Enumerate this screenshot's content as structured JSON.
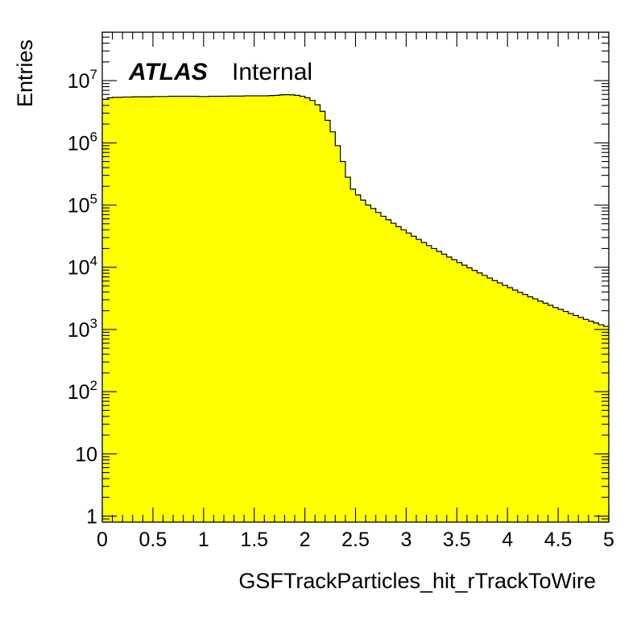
{
  "chart_data": {
    "type": "histogram",
    "title": "",
    "xlabel": "GSFTrackParticles_hit_rTrackToWire",
    "ylabel": "Entries",
    "xlim": [
      0,
      5
    ],
    "ylim": [
      0.8,
      60000000
    ],
    "yscale": "log",
    "fill_color": "#ffff00",
    "line_color": "#000000",
    "legend": "none",
    "grid": false,
    "x_tick_labels": [
      "0",
      "0.5",
      "1",
      "1.5",
      "2",
      "2.5",
      "3",
      "3.5",
      "4",
      "4.5",
      "5"
    ],
    "y_ticks": [
      {
        "value": 1,
        "base": "1",
        "exp": ""
      },
      {
        "value": 10,
        "base": "10",
        "exp": ""
      },
      {
        "value": 100,
        "base": "10",
        "exp": "2"
      },
      {
        "value": 1000,
        "base": "10",
        "exp": "3"
      },
      {
        "value": 10000,
        "base": "10",
        "exp": "4"
      },
      {
        "value": 100000,
        "base": "10",
        "exp": "5"
      },
      {
        "value": 1000000,
        "base": "10",
        "exp": "6"
      },
      {
        "value": 10000000,
        "base": "10",
        "exp": "7"
      }
    ],
    "bin_width": 0.05,
    "bin_low_edges": [
      0.0,
      0.05,
      0.1,
      0.15,
      0.2,
      0.25,
      0.3,
      0.35,
      0.4,
      0.45,
      0.5,
      0.55,
      0.6,
      0.65,
      0.7,
      0.75,
      0.8,
      0.85,
      0.9,
      0.95,
      1.0,
      1.05,
      1.1,
      1.15,
      1.2,
      1.25,
      1.3,
      1.35,
      1.4,
      1.45,
      1.5,
      1.55,
      1.6,
      1.65,
      1.7,
      1.75,
      1.8,
      1.85,
      1.9,
      1.95,
      2.0,
      2.05,
      2.1,
      2.15,
      2.2,
      2.25,
      2.3,
      2.35,
      2.4,
      2.45,
      2.5,
      2.55,
      2.6,
      2.65,
      2.7,
      2.75,
      2.8,
      2.85,
      2.9,
      2.95,
      3.0,
      3.05,
      3.1,
      3.15,
      3.2,
      3.25,
      3.3,
      3.35,
      3.4,
      3.45,
      3.5,
      3.55,
      3.6,
      3.65,
      3.7,
      3.75,
      3.8,
      3.85,
      3.9,
      3.95,
      4.0,
      4.05,
      4.1,
      4.15,
      4.2,
      4.25,
      4.3,
      4.35,
      4.4,
      4.45,
      4.5,
      4.55,
      4.6,
      4.65,
      4.7,
      4.75,
      4.8,
      4.85,
      4.9,
      4.95
    ],
    "values": [
      5000000,
      5300000,
      5400000,
      5400000,
      5450000,
      5450000,
      5500000,
      5500000,
      5500000,
      5500000,
      5550000,
      5550000,
      5550000,
      5600000,
      5600000,
      5600000,
      5600000,
      5600000,
      5600000,
      5550000,
      5550000,
      5600000,
      5600000,
      5600000,
      5600000,
      5650000,
      5650000,
      5650000,
      5700000,
      5700000,
      5700000,
      5700000,
      5700000,
      5750000,
      5800000,
      5900000,
      5950000,
      5900000,
      5800000,
      5600000,
      5300000,
      4800000,
      4100000,
      3200000,
      2300000,
      1500000,
      900000,
      500000,
      280000,
      180000,
      145000,
      120000,
      100000,
      88000,
      76000,
      66000,
      58000,
      51000,
      45000,
      40000,
      35500,
      31500,
      28000,
      25000,
      22300,
      20000,
      18000,
      16200,
      14600,
      13200,
      11900,
      10800,
      9800,
      8900,
      8100,
      7400,
      6700,
      6100,
      5600,
      5100,
      4700,
      4300,
      3950,
      3650,
      3350,
      3100,
      2850,
      2650,
      2450,
      2250,
      2100,
      1950,
      1800,
      1680,
      1560,
      1450,
      1360,
      1270,
      1190,
      1120
    ],
    "annotations": {
      "experiment": "ATLAS",
      "status": "Internal"
    }
  }
}
